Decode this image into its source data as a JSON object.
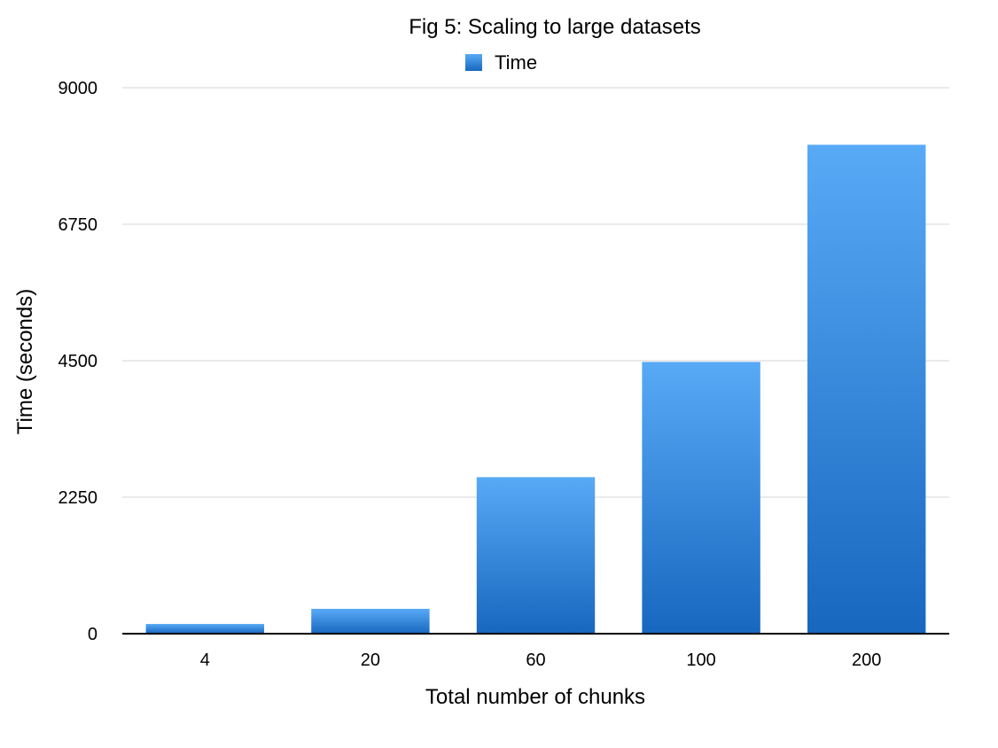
{
  "chart_data": {
    "type": "bar",
    "title": "Fig 5: Scaling to large datasets",
    "xlabel": "Total number of chunks",
    "ylabel": "Time (seconds)",
    "categories": [
      "4",
      "20",
      "60",
      "100",
      "200"
    ],
    "series": [
      {
        "name": "Time",
        "values": [
          160,
          410,
          2580,
          4480,
          8060
        ],
        "color": "#2f8ee0"
      }
    ],
    "ylim": [
      0,
      9000
    ],
    "yticks": [
      "0",
      "2250",
      "4500",
      "6750",
      "9000"
    ],
    "grid": true,
    "legend_position": "top-center"
  }
}
